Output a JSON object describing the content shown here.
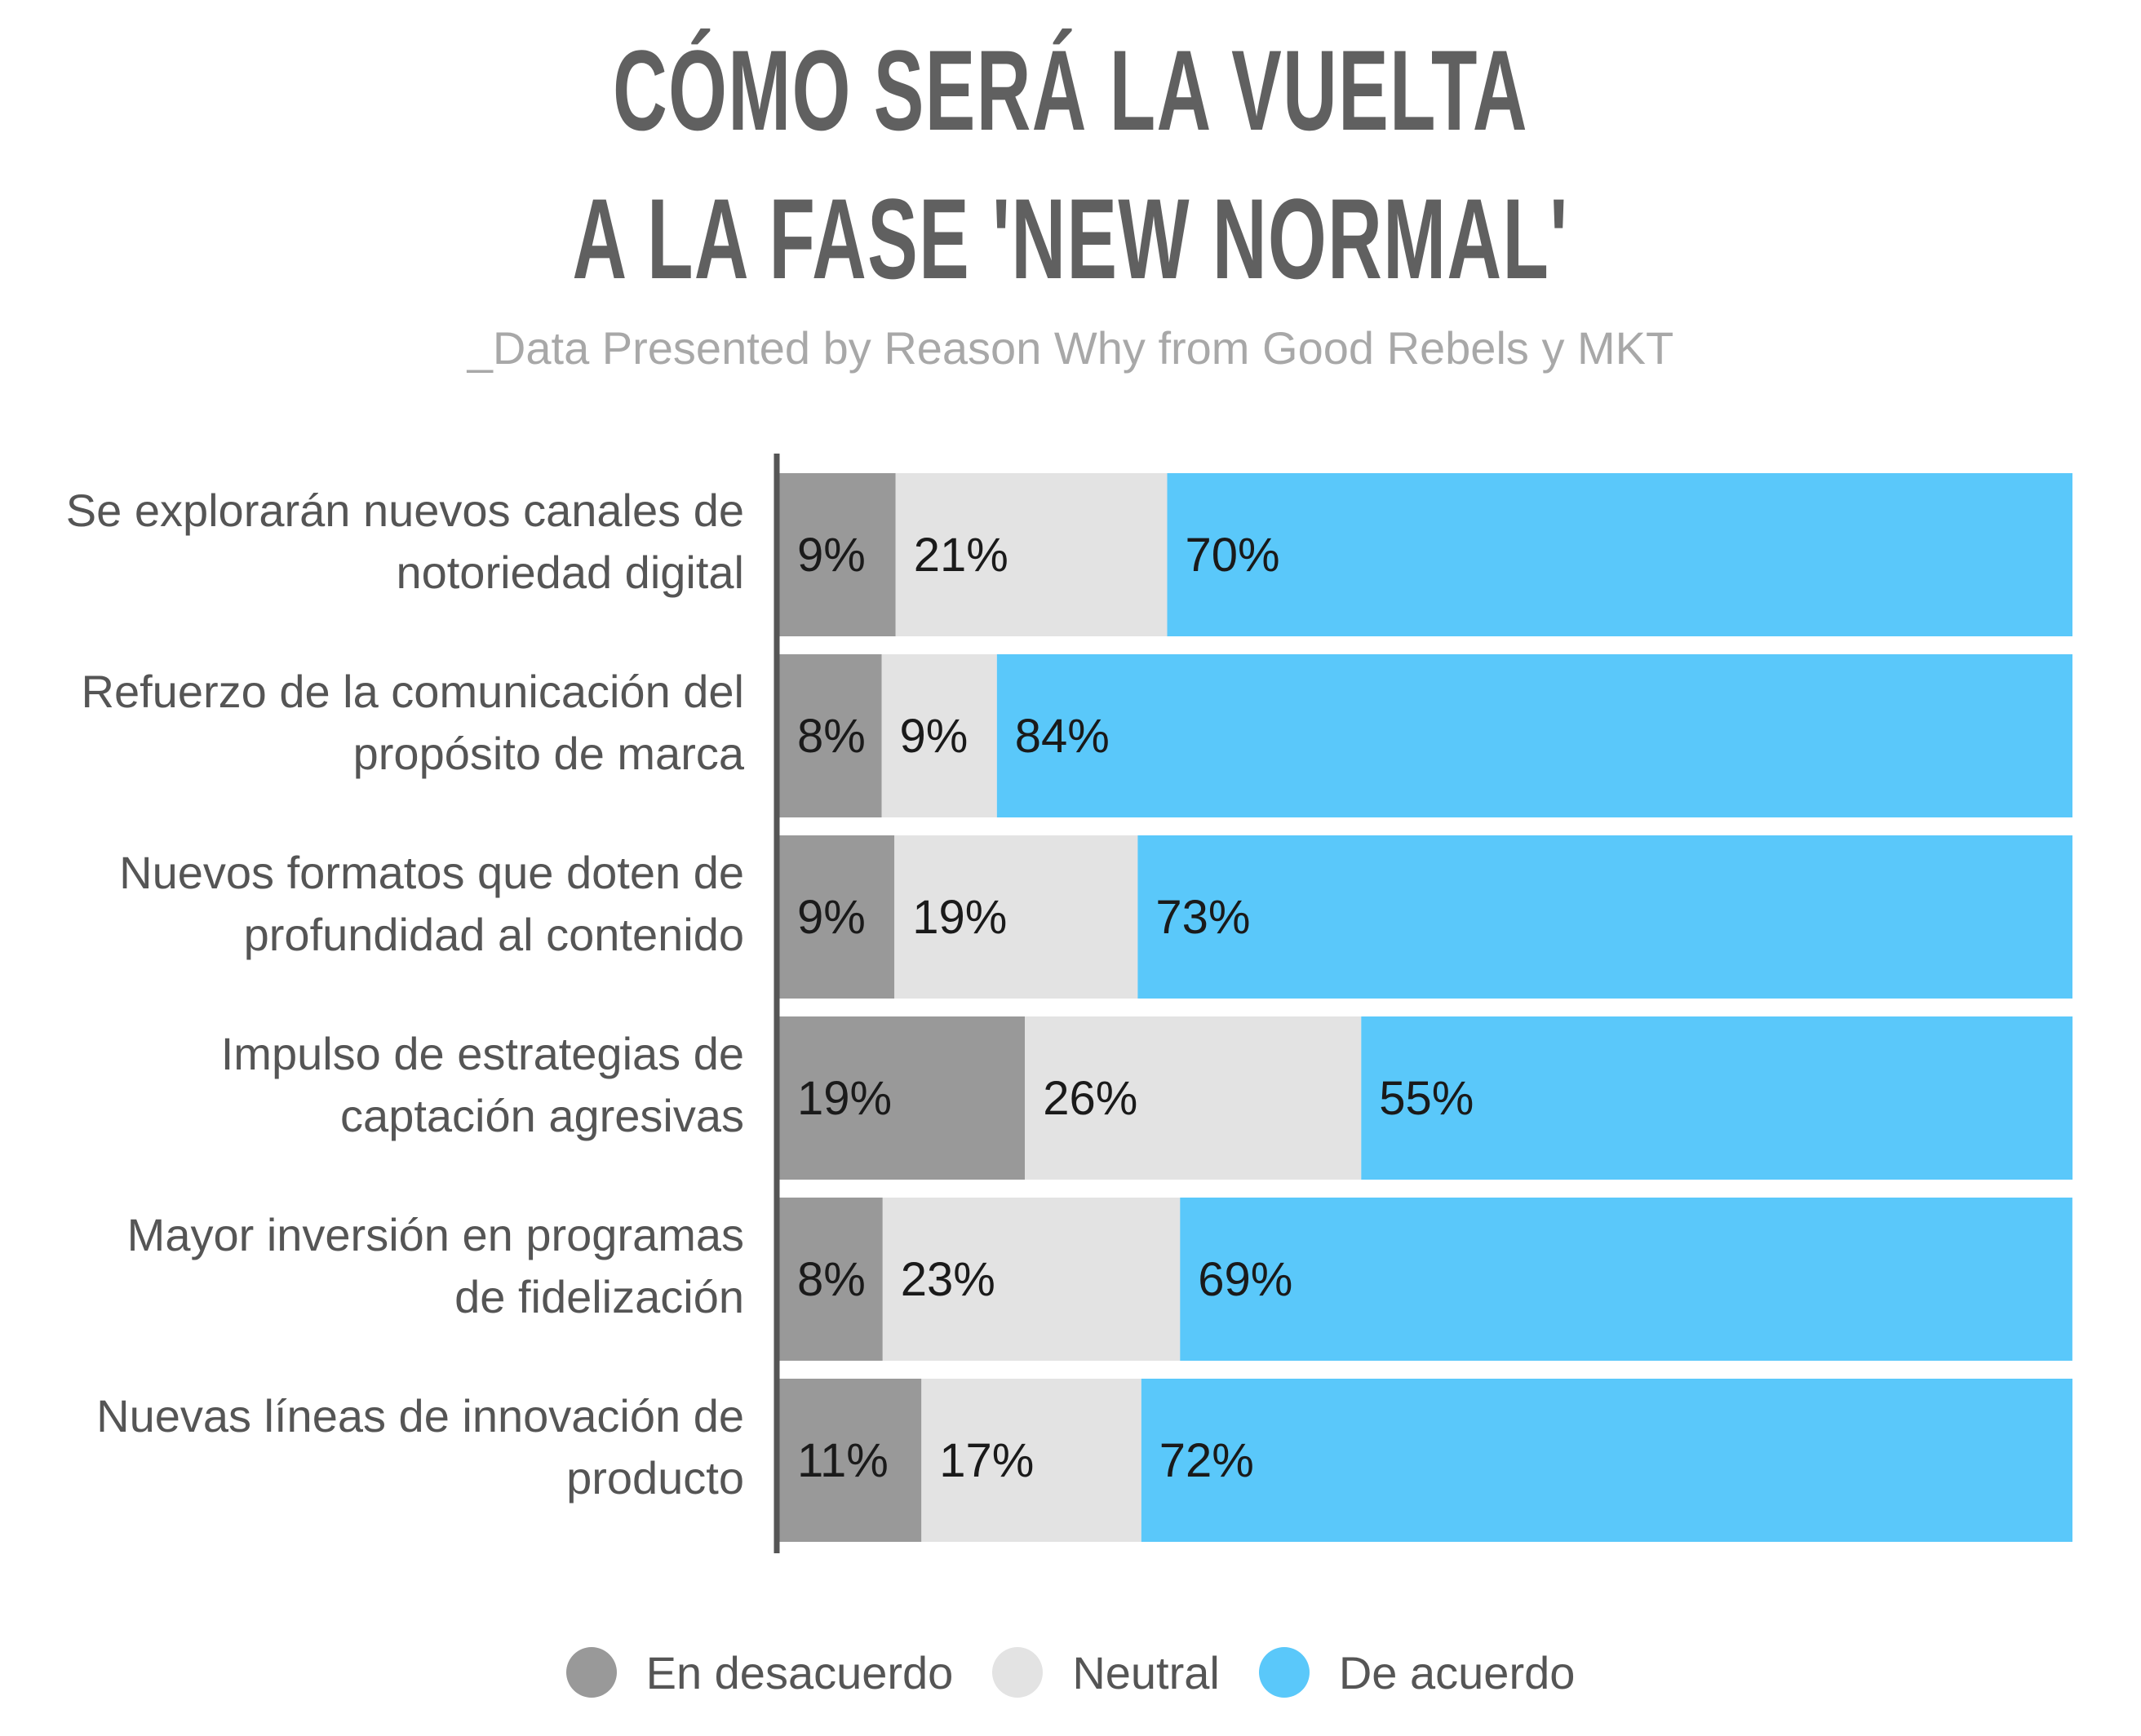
{
  "chart_data": {
    "type": "bar",
    "orientation": "horizontal",
    "stacked": true,
    "title": [
      "CÓMO SERÁ LA VUELTA",
      "A LA FASE 'NEW NORMAL'"
    ],
    "subtitle": "_Data Presented by Reason Why from Good Rebels y MKT",
    "categories": [
      [
        "Se explorarán nuevos canales de",
        "notoriedad digital"
      ],
      [
        "Refuerzo de la comunicación del",
        "propósito de marca"
      ],
      [
        "Nuevos formatos que doten de",
        "profundidad al contenido"
      ],
      [
        "Impulso de estrategias de",
        "captación agresivas"
      ],
      [
        "Mayor inversión en programas",
        "de fidelización"
      ],
      [
        "Nuevas líneas de innovación de",
        "producto"
      ]
    ],
    "series": [
      {
        "name": "En desacuerdo",
        "color": "#999999",
        "values": [
          9,
          8,
          9,
          19,
          8,
          11
        ]
      },
      {
        "name": "Neutral",
        "color": "#e3e3e3",
        "values": [
          21,
          9,
          19,
          26,
          23,
          17
        ]
      },
      {
        "name": "De acuerdo",
        "color": "#5ac8fa",
        "values": [
          70,
          84,
          73,
          55,
          69,
          72
        ]
      }
    ],
    "value_suffix": "%",
    "legend_position": "bottom",
    "grid": false
  }
}
